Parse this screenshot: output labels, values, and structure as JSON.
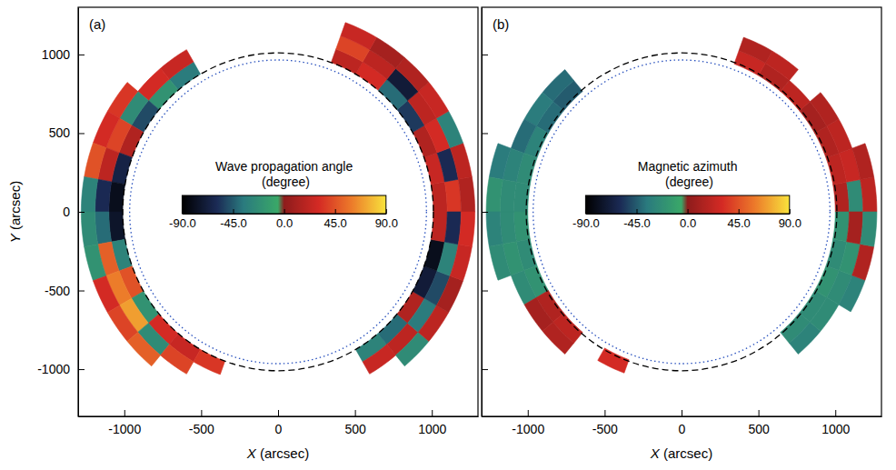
{
  "chart_data": [
    {
      "type": "polar_heatmap",
      "title": "(a)",
      "xlabel": "X (arcsec)",
      "ylabel": "Y (arcsec)",
      "xlim": [
        -1300,
        1300
      ],
      "ylim": [
        -1300,
        1300
      ],
      "xticks": [
        -1000,
        -500,
        0,
        500,
        1000
      ],
      "yticks": [
        -1000,
        -500,
        0,
        500,
        1000
      ],
      "grid": false,
      "theta_edges": [
        0,
        10,
        20,
        30,
        40,
        50,
        60,
        70,
        80,
        90,
        100,
        110,
        120,
        130,
        140,
        150,
        160,
        170,
        180,
        190,
        200,
        210,
        220,
        230,
        240,
        250,
        260,
        270,
        280,
        290,
        300,
        310,
        320,
        330,
        340,
        350,
        360
      ],
      "r_edges": [
        1010,
        1100,
        1190,
        1280
      ],
      "cells": [
        [
          20,
          25,
          15,
          -55,
          -40,
          30,
          20,
          null,
          null,
          null,
          null,
          null,
          -35,
          -20,
          -50,
          15,
          -65,
          -80,
          -75,
          -30,
          45,
          -20,
          30,
          25,
          35,
          null,
          null,
          null,
          null,
          null,
          -30,
          -40,
          15,
          -70,
          -80,
          20
        ],
        [
          35,
          -60,
          30,
          20,
          -70,
          20,
          40,
          null,
          null,
          null,
          null,
          null,
          25,
          30,
          -25,
          40,
          20,
          -60,
          -40,
          50,
          60,
          70,
          -25,
          40,
          null,
          null,
          null,
          null,
          null,
          null,
          25,
          20,
          -35,
          -50,
          -30,
          -60
        ],
        [
          15,
          20,
          -30,
          25,
          15,
          10,
          25,
          null,
          null,
          null,
          null,
          null,
          null,
          null,
          35,
          30,
          45,
          -30,
          -25,
          -20,
          30,
          40,
          50,
          null,
          null,
          null,
          null,
          null,
          null,
          null,
          null,
          -25,
          20,
          10,
          25,
          30
        ]
      ],
      "colorbar": {
        "label": "Wave propagation angle (degree)",
        "lim": [
          -90,
          90
        ],
        "ticks": [
          {
            "value": -90,
            "label": "-90.0"
          },
          {
            "value": -45,
            "label": "-45.0"
          },
          {
            "value": 0,
            "label": "0.0"
          },
          {
            "value": 45,
            "label": "45.0"
          },
          {
            "value": 90,
            "label": "90.0"
          }
        ]
      },
      "circles": [
        {
          "radius": 1010,
          "line_style": "dashed",
          "color": "#000000"
        },
        {
          "radius": 965,
          "line_style": "dotted",
          "color": "#2a52be"
        }
      ]
    },
    {
      "type": "polar_heatmap",
      "title": "(b)",
      "xlabel": "X (arcsec)",
      "xlim": [
        -1300,
        1300
      ],
      "ylim": [
        -1300,
        1300
      ],
      "xticks": [
        -1000,
        -500,
        0,
        500,
        1000
      ],
      "yticks": [
        -1000,
        -500,
        0,
        500,
        1000
      ],
      "tick_labels": "x",
      "grid": false,
      "theta_edges": [
        0,
        10,
        20,
        30,
        40,
        50,
        60,
        70,
        80,
        90,
        100,
        110,
        120,
        130,
        140,
        150,
        160,
        170,
        180,
        190,
        200,
        210,
        220,
        230,
        240,
        250,
        260,
        270,
        280,
        290,
        300,
        310,
        320,
        330,
        340,
        350,
        360
      ],
      "r_edges": [
        1000,
        1090,
        1180,
        1270
      ],
      "cells": [
        [
          15,
          20,
          15,
          10,
          20,
          15,
          25,
          null,
          null,
          null,
          null,
          null,
          null,
          -45,
          -40,
          -30,
          -25,
          -25,
          -20,
          -25,
          -20,
          15,
          20,
          null,
          30,
          null,
          null,
          null,
          null,
          null,
          null,
          -25,
          -25,
          -20,
          -25,
          -20
        ],
        [
          -25,
          25,
          20,
          15,
          null,
          20,
          15,
          null,
          null,
          null,
          null,
          null,
          null,
          -40,
          -35,
          -40,
          -30,
          -25,
          -25,
          -20,
          -25,
          10,
          15,
          null,
          null,
          null,
          null,
          null,
          null,
          null,
          null,
          -30,
          -25,
          -25,
          -20,
          10
        ],
        [
          20,
          15,
          null,
          null,
          null,
          null,
          null,
          null,
          null,
          null,
          null,
          null,
          null,
          null,
          null,
          null,
          -35,
          -20,
          -30,
          -25,
          null,
          null,
          null,
          null,
          null,
          null,
          null,
          null,
          null,
          null,
          null,
          null,
          null,
          -30,
          15,
          -25
        ]
      ],
      "colorbar": {
        "label": "Magnetic azimuth (degree)",
        "lim": [
          -90,
          90
        ],
        "ticks": [
          {
            "value": -90,
            "label": "-90.0"
          },
          {
            "value": -45,
            "label": "-45.0"
          },
          {
            "value": 0,
            "label": "0.0"
          },
          {
            "value": 45,
            "label": "45.0"
          },
          {
            "value": 90,
            "label": "90.0"
          }
        ]
      },
      "circles": [
        {
          "radius": 1010,
          "line_style": "dashed",
          "color": "#000000"
        },
        {
          "radius": 965,
          "line_style": "dotted",
          "color": "#2a52be"
        }
      ]
    }
  ]
}
